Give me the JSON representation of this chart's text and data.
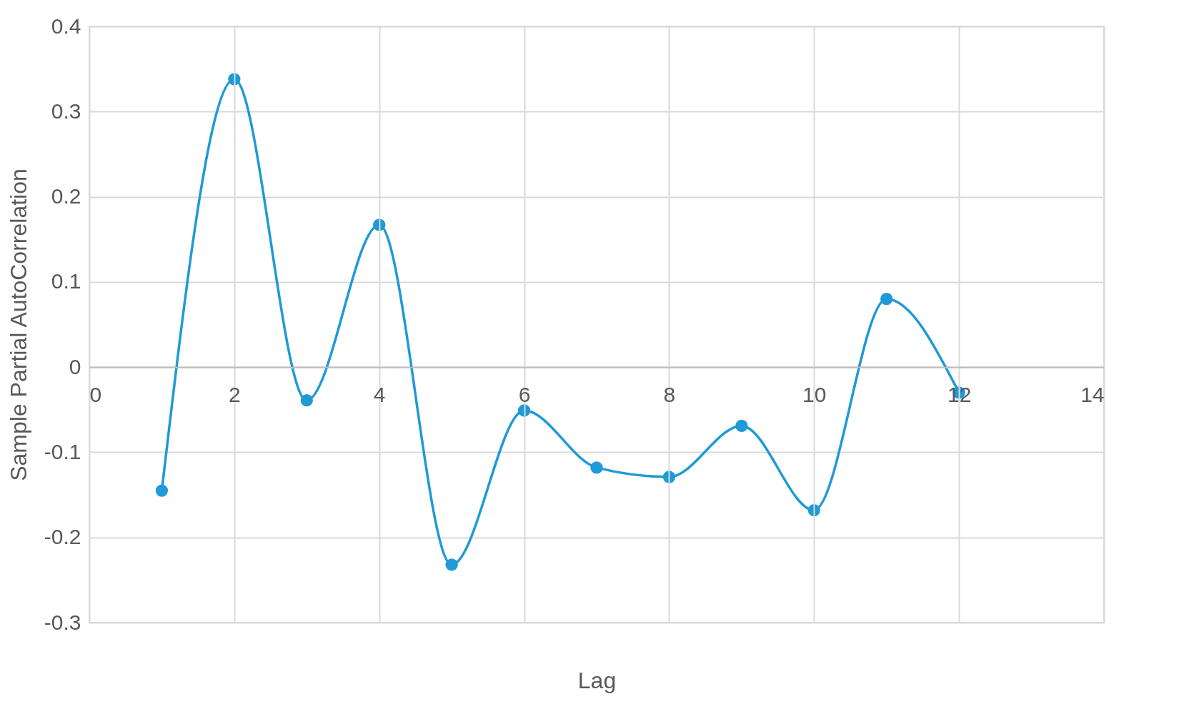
{
  "chart_data": {
    "type": "line",
    "xlabel": "Lag",
    "ylabel": "Sample Partial AutoCorrelation",
    "x": [
      1,
      2,
      3,
      4,
      5,
      6,
      7,
      8,
      9,
      10,
      11,
      12
    ],
    "series": [
      {
        "color": "#1f9ad6",
        "values": [
          -0.145,
          0.338,
          -0.039,
          0.167,
          -0.232,
          -0.051,
          -0.118,
          -0.129,
          -0.069,
          -0.168,
          0.08,
          -0.03
        ]
      }
    ],
    "xlim": [
      0,
      14
    ],
    "xticks": [
      0,
      2,
      4,
      6,
      8,
      10,
      12,
      14
    ],
    "ylim": [
      -0.3,
      0.4
    ],
    "yticks": [
      -0.3,
      -0.2,
      -0.1,
      0,
      0.1,
      0.2,
      0.3,
      0.4
    ],
    "grid": true,
    "marker": "circle"
  }
}
